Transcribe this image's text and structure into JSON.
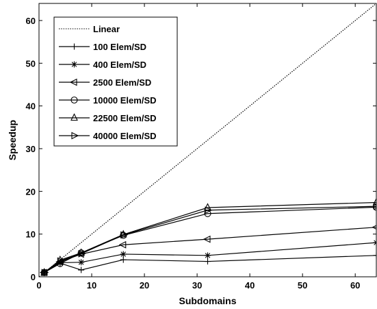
{
  "chart_data": {
    "type": "line",
    "xlabel": "Subdomains",
    "ylabel": "Speedup",
    "xlim": [
      0,
      64
    ],
    "ylim": [
      0,
      64
    ],
    "xticks": [
      0,
      10,
      20,
      30,
      40,
      50,
      60
    ],
    "yticks": [
      0,
      10,
      20,
      30,
      40,
      50,
      60
    ],
    "grid": false,
    "legend_position": "top-left",
    "series": [
      {
        "name": "Linear",
        "style": "dotted",
        "marker": "none",
        "x": [
          0,
          64
        ],
        "y": [
          0,
          64
        ]
      },
      {
        "name": "100 Elem/SD",
        "style": "solid",
        "marker": "plus",
        "x": [
          1,
          4,
          8,
          16,
          32,
          64
        ],
        "y": [
          1.0,
          3.2,
          1.6,
          4.0,
          3.6,
          5.0
        ]
      },
      {
        "name": "400 Elem/SD",
        "style": "solid",
        "marker": "star",
        "x": [
          1,
          4,
          8,
          16,
          32,
          64
        ],
        "y": [
          1.0,
          3.3,
          3.4,
          5.3,
          5.0,
          8.0
        ]
      },
      {
        "name": "2500 Elem/SD",
        "style": "solid",
        "marker": "triangle-left",
        "x": [
          1,
          4,
          8,
          16,
          32,
          64
        ],
        "y": [
          1.0,
          3.5,
          5.3,
          7.5,
          8.8,
          11.6
        ]
      },
      {
        "name": "10000 Elem/SD",
        "style": "solid",
        "marker": "circle",
        "x": [
          1,
          4,
          8,
          16,
          32,
          64
        ],
        "y": [
          1.0,
          3.1,
          5.6,
          9.7,
          14.8,
          16.3
        ]
      },
      {
        "name": "22500 Elem/SD",
        "style": "solid",
        "marker": "triangle-up",
        "x": [
          1,
          4,
          8,
          16,
          32,
          64
        ],
        "y": [
          1.0,
          3.9,
          5.6,
          9.9,
          16.2,
          17.4
        ]
      },
      {
        "name": "40000 Elem/SD",
        "style": "solid",
        "marker": "triangle-right",
        "x": [
          1,
          4,
          8,
          16,
          32,
          64
        ],
        "y": [
          1.0,
          3.7,
          5.4,
          9.8,
          15.6,
          16.5
        ]
      }
    ]
  }
}
